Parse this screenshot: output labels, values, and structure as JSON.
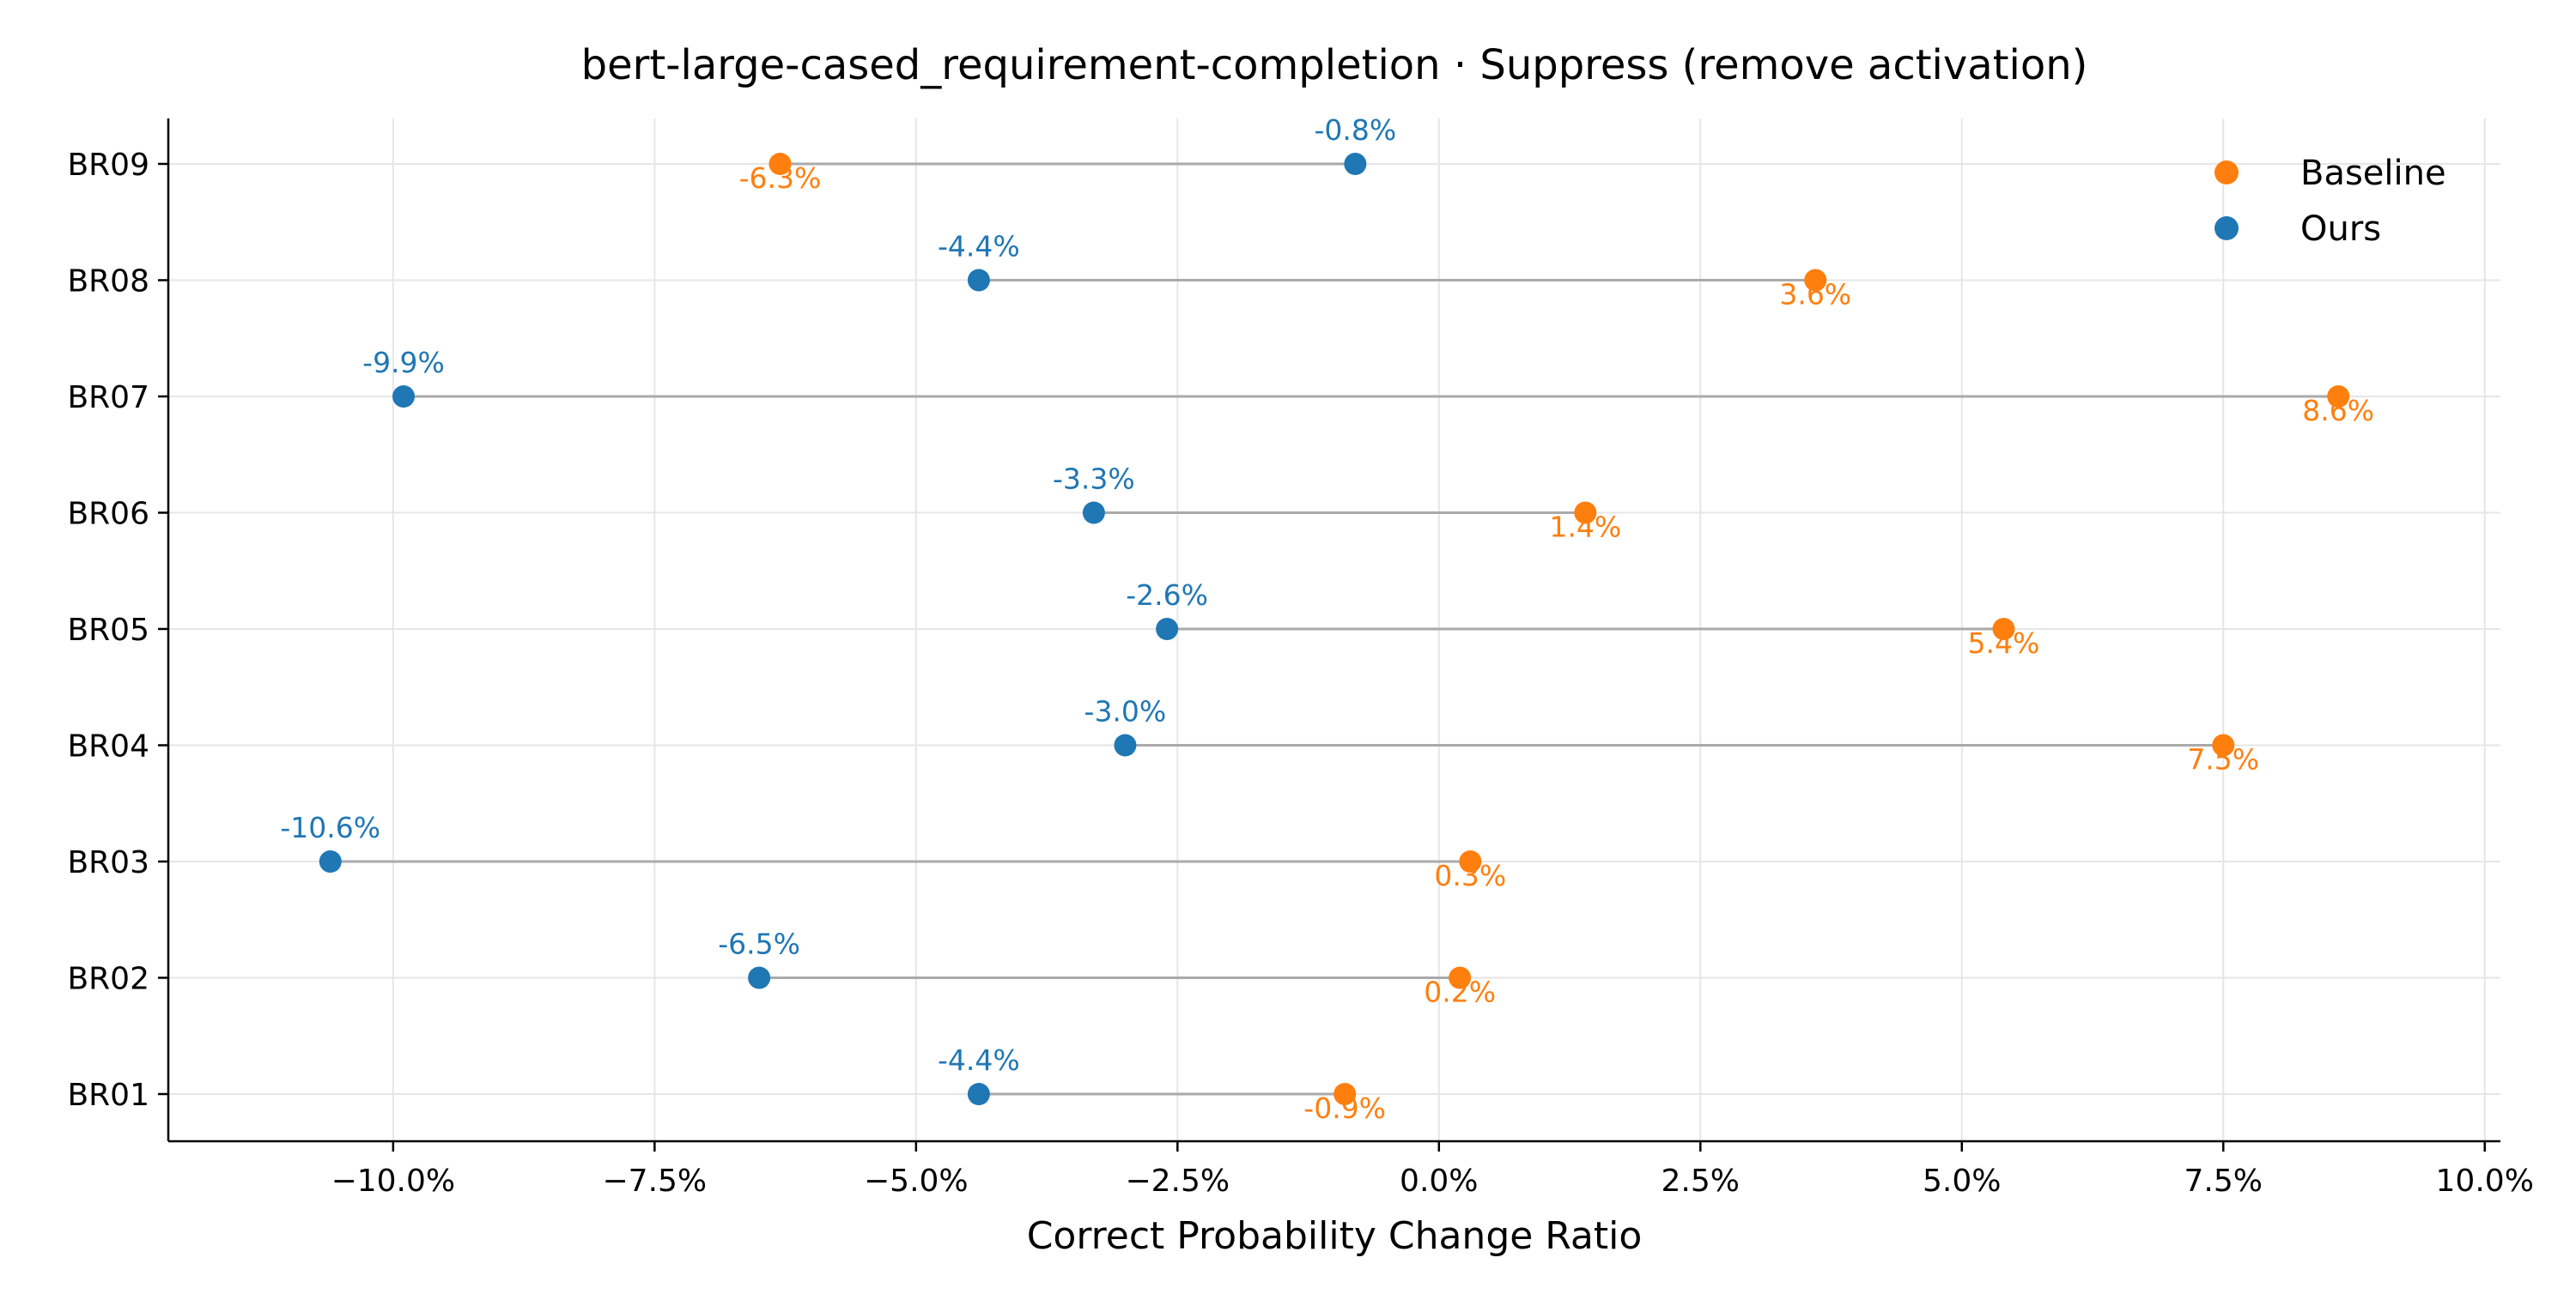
{
  "chart_data": {
    "type": "dumbbell",
    "title": "bert-large-cased_requirement-completion · Suppress (remove activation)",
    "xlabel": "Correct Probability Change Ratio",
    "ylabel": "",
    "xlim": [
      -12.15,
      10.15
    ],
    "xticks": [
      -10.0,
      -7.5,
      -5.0,
      -2.5,
      0.0,
      2.5,
      5.0,
      7.5,
      10.0
    ],
    "xtick_labels": [
      "−10.0%",
      "−7.5%",
      "−5.0%",
      "−2.5%",
      "0.0%",
      "2.5%",
      "5.0%",
      "7.5%",
      "10.0%"
    ],
    "categories": [
      "BR01",
      "BR02",
      "BR03",
      "BR04",
      "BR05",
      "BR06",
      "BR07",
      "BR08",
      "BR09"
    ],
    "grid": true,
    "legend_position": "top-right",
    "series": [
      {
        "name": "Baseline",
        "color": "#ff7f0e",
        "values": [
          -0.9,
          0.2,
          0.3,
          7.5,
          5.4,
          1.4,
          8.6,
          3.6,
          -6.3
        ],
        "labels": [
          "-0.9%",
          "0.2%",
          "0.3%",
          "7.5%",
          "5.4%",
          "1.4%",
          "8.6%",
          "3.6%",
          "-6.3%"
        ]
      },
      {
        "name": "Ours",
        "color": "#1f77b4",
        "values": [
          -4.4,
          -6.5,
          -10.6,
          -3.0,
          -2.6,
          -3.3,
          -9.9,
          -4.4,
          -0.8
        ],
        "labels": [
          "-4.4%",
          "-6.5%",
          "-10.6%",
          "-3.0%",
          "-2.6%",
          "-3.3%",
          "-9.9%",
          "-4.4%",
          "-0.8%"
        ]
      }
    ]
  }
}
